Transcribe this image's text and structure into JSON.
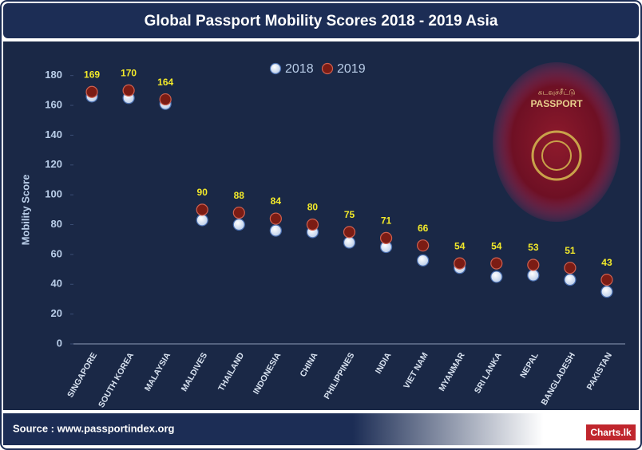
{
  "chart_data": {
    "type": "dot",
    "title": "Global Passport Mobility Scores 2018 - 2019  Asia",
    "y_label": "Mobility Score",
    "source": "Source : www.passportindex.org",
    "logo": "Charts.lk",
    "image_texts": [
      "PASSPORT",
      "கடவுச்சீட்டு"
    ],
    "categories": [
      "SINGAPORE",
      "SOUTH KOREA",
      "MALAYSIA",
      "MALDIVES",
      "THAILAND",
      "INDONESIA",
      "CHINA",
      "PHILIPPINES",
      "INDIA",
      "VIET NAM",
      "MYANMAR",
      "SRI LANKA",
      "NEPAL",
      "BANGLADESH",
      "PAKISTAN"
    ],
    "series": [
      {
        "name": "2018",
        "color": "#dfe9f7",
        "values": [
          166,
          165,
          161,
          83,
          80,
          76,
          75,
          68,
          65,
          56,
          51,
          45,
          46,
          43,
          35
        ]
      },
      {
        "name": "2019",
        "color": "#7b1c14",
        "values": [
          169,
          170,
          164,
          90,
          88,
          84,
          80,
          75,
          71,
          66,
          54,
          54,
          53,
          51,
          43
        ],
        "labels": true
      }
    ],
    "ylim": [
      0,
      190
    ],
    "yticks": [
      0,
      20,
      40,
      60,
      80,
      100,
      120,
      140,
      160,
      180
    ],
    "legend": "top"
  }
}
